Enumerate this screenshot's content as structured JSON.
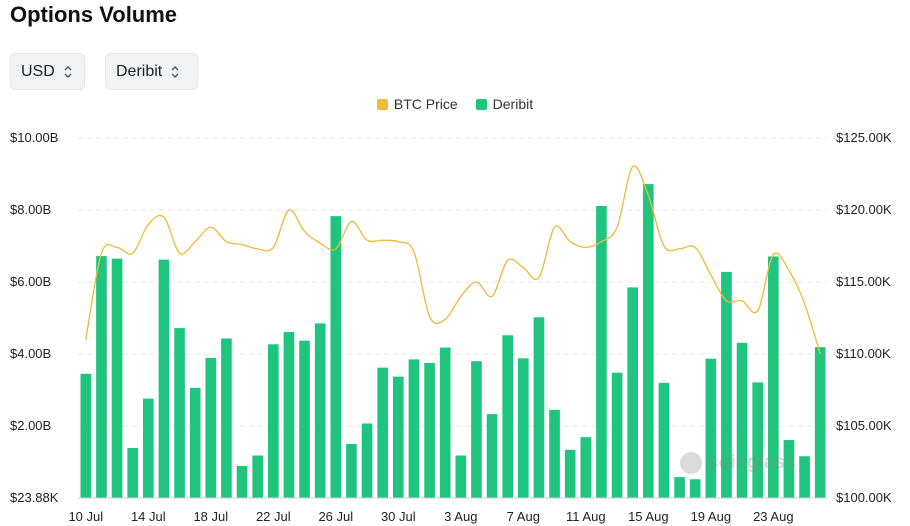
{
  "title": "Options Volume",
  "controls": {
    "currency": "USD",
    "exchange": "Deribit"
  },
  "colors": {
    "bar": "#1fc47f",
    "line": "#f0b93a",
    "grid": "#e8e8e8"
  },
  "watermark": "coinglass",
  "chart_data": {
    "type": "bar",
    "title": "",
    "legend": [
      "BTC Price",
      "Deribit"
    ],
    "legend_position": "top-center",
    "grid": true,
    "categories": [
      "10 Jul",
      "11 Jul",
      "12 Jul",
      "13 Jul",
      "14 Jul",
      "15 Jul",
      "16 Jul",
      "17 Jul",
      "18 Jul",
      "19 Jul",
      "20 Jul",
      "21 Jul",
      "22 Jul",
      "23 Jul",
      "24 Jul",
      "25 Jul",
      "26 Jul",
      "27 Jul",
      "28 Jul",
      "29 Jul",
      "30 Jul",
      "31 Jul",
      "1 Aug",
      "2 Aug",
      "3 Aug",
      "4 Aug",
      "5 Aug",
      "6 Aug",
      "7 Aug",
      "8 Aug",
      "9 Aug",
      "10 Aug",
      "11 Aug",
      "12 Aug",
      "13 Aug",
      "14 Aug",
      "15 Aug",
      "16 Aug",
      "17 Aug",
      "18 Aug",
      "19 Aug",
      "20 Aug",
      "21 Aug",
      "22 Aug",
      "23 Aug",
      "24 Aug",
      "25 Aug",
      "26 Aug"
    ],
    "x_tick_labels": [
      "10 Jul",
      "14 Jul",
      "18 Jul",
      "22 Jul",
      "26 Jul",
      "30 Jul",
      "3 Aug",
      "7 Aug",
      "11 Aug",
      "15 Aug",
      "19 Aug",
      "23 Aug"
    ],
    "series": [
      {
        "name": "Deribit",
        "axis": "left",
        "type": "bar",
        "values": [
          3.45,
          6.72,
          6.65,
          1.39,
          2.76,
          6.62,
          4.72,
          3.06,
          3.89,
          4.43,
          0.89,
          1.18,
          4.27,
          4.61,
          4.37,
          4.85,
          7.83,
          1.5,
          2.07,
          3.62,
          3.37,
          3.85,
          3.75,
          4.18,
          1.18,
          3.8,
          2.33,
          4.52,
          3.88,
          5.02,
          2.45,
          1.34,
          1.69,
          8.11,
          3.48,
          5.85,
          8.72,
          3.2,
          0.58,
          0.52,
          3.87,
          6.28,
          4.31,
          3.21,
          6.71,
          1.61,
          1.16,
          4.19
        ]
      },
      {
        "name": "BTC Price",
        "axis": "right",
        "type": "line",
        "values": [
          111000,
          117000,
          117400,
          117000,
          119000,
          119500,
          117000,
          117800,
          118800,
          117800,
          117600,
          117300,
          117400,
          120000,
          118500,
          117700,
          117300,
          119200,
          117900,
          117900,
          117800,
          117100,
          112600,
          112400,
          114000,
          115000,
          114000,
          116500,
          116000,
          115300,
          118800,
          117800,
          117400,
          117800,
          118800,
          123000,
          121000,
          117500,
          117300,
          117400,
          115500,
          113700,
          113700,
          113000,
          116900,
          115800,
          113500,
          110000
        ]
      }
    ],
    "y_left": {
      "ticks": [
        "$23.88K",
        "$2.00B",
        "$4.00B",
        "$6.00B",
        "$8.00B",
        "$10.00B"
      ],
      "min": 0,
      "max": 10
    },
    "y_right": {
      "ticks": [
        "$100.00K",
        "$105.00K",
        "$110.00K",
        "$115.00K",
        "$120.00K",
        "$125.00K"
      ],
      "min": 100000,
      "max": 125000
    }
  }
}
